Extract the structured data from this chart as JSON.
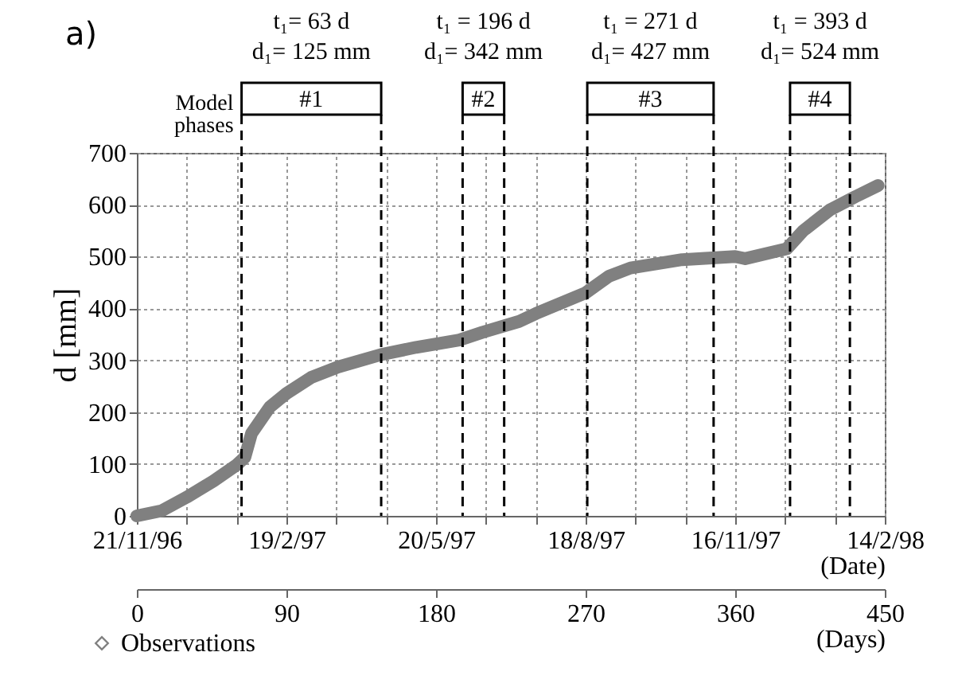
{
  "chart_data": {
    "type": "line",
    "title": "a)",
    "ylabel": "d [mm]",
    "xlabel": "(Days)",
    "x2label": "(Date)",
    "series": [
      {
        "name": "Observations",
        "color": "#808080",
        "x": [
          0,
          15,
          30,
          46,
          60,
          65,
          69,
          80,
          90,
          105,
          121,
          147,
          168,
          194,
          208,
          230,
          240,
          270,
          284,
          297,
          328,
          360,
          366,
          391,
          401,
          417,
          432,
          446
        ],
        "values": [
          0,
          10,
          36,
          67,
          98,
          113,
          159,
          210,
          236,
          267,
          287,
          311,
          325,
          339,
          354,
          375,
          390,
          430,
          462,
          478,
          494,
          500,
          496,
          515,
          550,
          590,
          615,
          637
        ]
      }
    ],
    "xlim": [
      0,
      450
    ],
    "ylim": [
      0,
      700
    ],
    "xticks": [
      0,
      90,
      180,
      270,
      360,
      450
    ],
    "yticks": [
      0,
      100,
      200,
      300,
      400,
      500,
      600,
      700
    ],
    "x2lim": [
      "1996-11-21",
      "1998-02-14"
    ],
    "x2ticks": [
      {
        "value": "1996-11-21",
        "label": "21/11/96"
      },
      {
        "value": "1996-12-21",
        "label": null
      },
      {
        "value": "1997-01-20",
        "label": null
      },
      {
        "value": "1997-02-19",
        "label": "19/2/97"
      },
      {
        "value": "1997-03-21",
        "label": null
      },
      {
        "value": "1997-04-20",
        "label": null
      },
      {
        "value": "1997-05-20",
        "label": "20/5/97"
      },
      {
        "value": "1997-06-19",
        "label": null
      },
      {
        "value": "1997-07-19",
        "label": null
      },
      {
        "value": "1997-08-18",
        "label": "18/8/97"
      },
      {
        "value": "1997-09-17",
        "label": null
      },
      {
        "value": "1997-10-17",
        "label": null
      },
      {
        "value": "1997-11-16",
        "label": "16/11/97"
      },
      {
        "value": "1997-12-16",
        "label": null
      },
      {
        "value": "1998-01-15",
        "label": null
      },
      {
        "value": "1998-02-14",
        "label": "14/2/98"
      }
    ],
    "ref_lines": [
      {
        "axis": "x",
        "value": 63,
        "label": null,
        "line_style": "dashed"
      },
      {
        "axis": "x",
        "value": 147,
        "label": null,
        "line_style": "dashed"
      },
      {
        "axis": "x",
        "value": 196,
        "label": null,
        "line_style": "dashed"
      },
      {
        "axis": "x",
        "value": 221,
        "label": null,
        "line_style": "dashed"
      },
      {
        "axis": "x",
        "value": 271,
        "label": null,
        "line_style": "dashed"
      },
      {
        "axis": "x",
        "value": 347,
        "label": null,
        "line_style": "dashed"
      },
      {
        "axis": "x",
        "value": 393,
        "label": null,
        "line_style": "dashed"
      },
      {
        "axis": "x",
        "value": 429,
        "label": null,
        "line_style": "dashed"
      }
    ],
    "annotations": [
      "Model phases",
      "#1",
      "#2",
      "#3",
      "#4",
      "t₁= 63 d\nd₁= 125 mm",
      "t₁ = 196 d\nd₁= 342 mm",
      "t₁ = 271 d\nd₁= 427 mm",
      "t₁ = 393 d\nd₁= 524 mm"
    ],
    "grid": true,
    "legend": "bottom left"
  }
}
